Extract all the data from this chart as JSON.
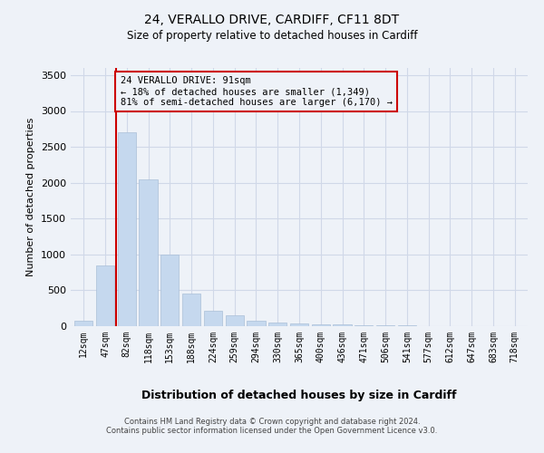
{
  "title1": "24, VERALLO DRIVE, CARDIFF, CF11 8DT",
  "title2": "Size of property relative to detached houses in Cardiff",
  "xlabel": "Distribution of detached houses by size in Cardiff",
  "ylabel": "Number of detached properties",
  "annotation_title": "24 VERALLO DRIVE: 91sqm",
  "annotation_line1": "← 18% of detached houses are smaller (1,349)",
  "annotation_line2": "81% of semi-detached houses are larger (6,170) →",
  "footer1": "Contains HM Land Registry data © Crown copyright and database right 2024.",
  "footer2": "Contains public sector information licensed under the Open Government Licence v3.0.",
  "bar_labels": [
    "12sqm",
    "47sqm",
    "82sqm",
    "118sqm",
    "153sqm",
    "188sqm",
    "224sqm",
    "259sqm",
    "294sqm",
    "330sqm",
    "365sqm",
    "400sqm",
    "436sqm",
    "471sqm",
    "506sqm",
    "541sqm",
    "577sqm",
    "612sqm",
    "647sqm",
    "683sqm",
    "718sqm"
  ],
  "bar_values": [
    75,
    850,
    2700,
    2050,
    1000,
    450,
    220,
    150,
    80,
    55,
    40,
    30,
    20,
    15,
    10,
    8,
    5,
    4,
    3,
    2,
    2
  ],
  "bar_color": "#c5d8ee",
  "bar_edge_color": "#aabfd8",
  "grid_color": "#d0d8e8",
  "vline_color": "#cc0000",
  "ylim": [
    0,
    3600
  ],
  "yticks": [
    0,
    500,
    1000,
    1500,
    2000,
    2500,
    3000,
    3500
  ],
  "bg_color": "#eef2f8"
}
